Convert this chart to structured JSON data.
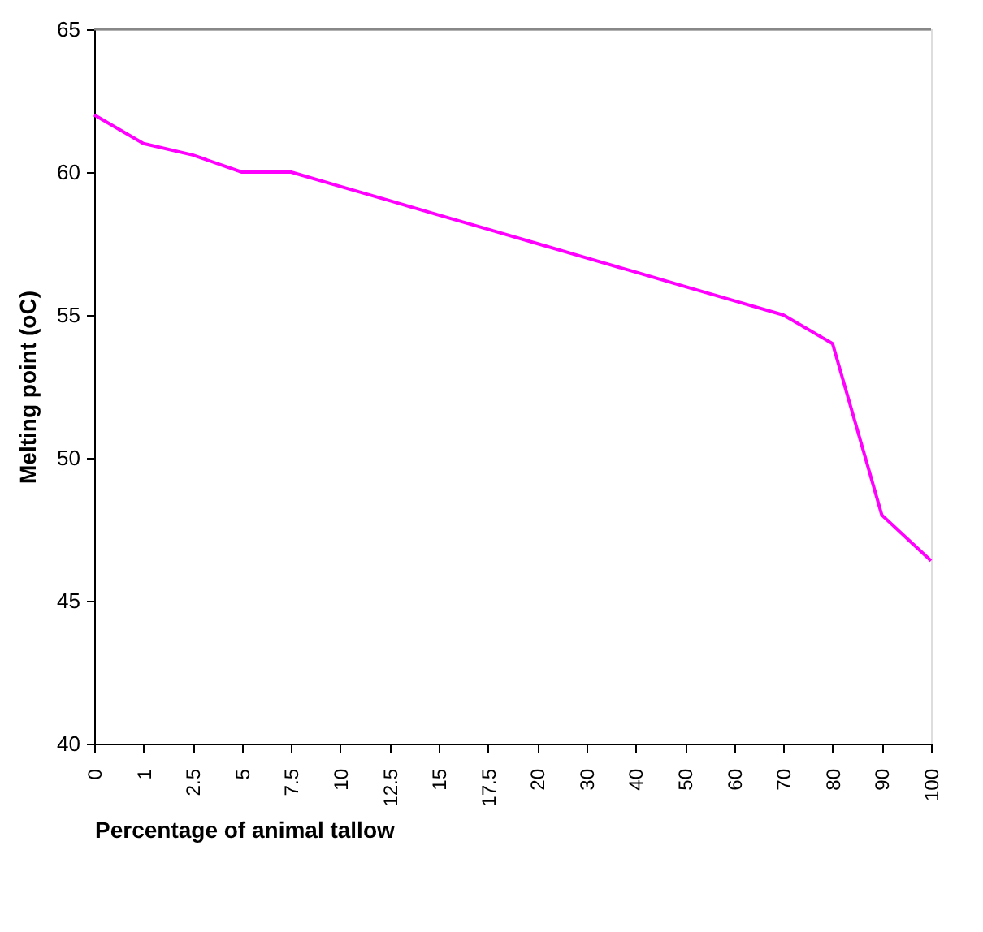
{
  "chart_data": {
    "type": "line",
    "xlabel": "Percentage of animal tallow",
    "ylabel": "Melting point (oC)",
    "categories": [
      "0",
      "1",
      "2.5",
      "5",
      "7.5",
      "10",
      "12.5",
      "15",
      "17.5",
      "20",
      "30",
      "40",
      "50",
      "60",
      "70",
      "80",
      "90",
      "100"
    ],
    "series": [
      {
        "color": "#ff00ff",
        "values": [
          62.0,
          61.0,
          60.6,
          60.0,
          60.0,
          59.5,
          59.0,
          58.5,
          58.0,
          57.5,
          57.0,
          56.5,
          56.0,
          55.5,
          55.0,
          54.0,
          48.0,
          46.4
        ]
      }
    ],
    "ylim": [
      40,
      65
    ],
    "yticks": [
      40,
      45,
      50,
      55,
      60,
      65
    ],
    "grid": false,
    "marker": "none",
    "line_style": "solid"
  }
}
